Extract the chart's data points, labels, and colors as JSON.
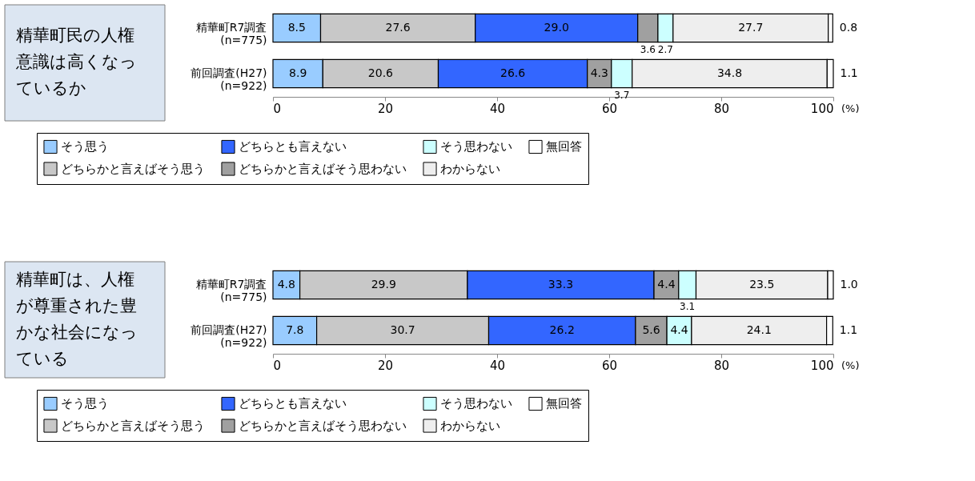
{
  "chart_data": [
    {
      "type": "bar",
      "orientation": "horizontal",
      "stacked": true,
      "title": "精華町民の人権意識は高くなっているか",
      "categories": [
        "精華町R7調査\n(n=775)",
        "前回調査(H27)\n(n=922)"
      ],
      "xlim": [
        0,
        100
      ],
      "xticks": [
        0,
        20,
        40,
        60,
        80,
        100
      ],
      "xlabel": "(%)",
      "grid": false,
      "legend": "bottom",
      "series": [
        {
          "name": "そう思う",
          "color": "#99ccff",
          "values": [
            8.5,
            8.9
          ],
          "value_labels": [
            "8.5",
            "8.9"
          ]
        },
        {
          "name": "どちらかと言えばそう思う",
          "color": "#c8c8c8",
          "values": [
            27.6,
            20.6
          ],
          "value_labels": [
            "27.6",
            "20.6"
          ]
        },
        {
          "name": "どちらとも言えない",
          "color": "#3366ff",
          "values": [
            29.0,
            26.6
          ],
          "value_labels": [
            "29.0",
            "26.6"
          ]
        },
        {
          "name": "どちらかと言えばそう思わない",
          "color": "#a0a0a0",
          "values": [
            3.6,
            4.3
          ],
          "value_labels": [
            "3.6",
            "4.3"
          ]
        },
        {
          "name": "そう思わない",
          "color": "#ccffff",
          "values": [
            2.7,
            3.7
          ],
          "value_labels": [
            "2.7",
            "3.7"
          ]
        },
        {
          "name": "わからない",
          "color": "#eeeeee",
          "values": [
            27.7,
            34.8
          ],
          "value_labels": [
            "27.7",
            "34.8"
          ]
        },
        {
          "name": "無回答",
          "color": "#ffffff",
          "values": [
            0.8,
            1.1
          ],
          "value_labels": [
            "0.8",
            "1.1"
          ]
        }
      ]
    },
    {
      "type": "bar",
      "orientation": "horizontal",
      "stacked": true,
      "title": "精華町は、人権が尊重された豊かな社会になっている",
      "categories": [
        "精華町R7調査\n(n=775)",
        "前回調査(H27)\n(n=922)"
      ],
      "xlim": [
        0,
        100
      ],
      "xticks": [
        0,
        20,
        40,
        60,
        80,
        100
      ],
      "xlabel": "(%)",
      "grid": false,
      "legend": "bottom",
      "series": [
        {
          "name": "そう思う",
          "color": "#99ccff",
          "values": [
            4.8,
            7.8
          ],
          "value_labels": [
            "4.8",
            "7.8"
          ]
        },
        {
          "name": "どちらかと言えばそう思う",
          "color": "#c8c8c8",
          "values": [
            29.9,
            30.7
          ],
          "value_labels": [
            "29.9",
            "30.7"
          ]
        },
        {
          "name": "どちらとも言えない",
          "color": "#3366ff",
          "values": [
            33.3,
            26.2
          ],
          "value_labels": [
            "33.3",
            "26.2"
          ]
        },
        {
          "name": "どちらかと言えばそう思わない",
          "color": "#a0a0a0",
          "values": [
            4.4,
            5.6
          ],
          "value_labels": [
            "4.4",
            "5.6"
          ]
        },
        {
          "name": "そう思わない",
          "color": "#ccffff",
          "values": [
            3.1,
            4.4
          ],
          "value_labels": [
            "3.1",
            "4.4"
          ]
        },
        {
          "name": "わからない",
          "color": "#eeeeee",
          "values": [
            23.5,
            24.1
          ],
          "value_labels": [
            "23.5",
            "24.1"
          ]
        },
        {
          "name": "無回答",
          "color": "#ffffff",
          "values": [
            1.0,
            1.1
          ],
          "value_labels": [
            "1.0",
            "1.1"
          ]
        }
      ]
    }
  ]
}
